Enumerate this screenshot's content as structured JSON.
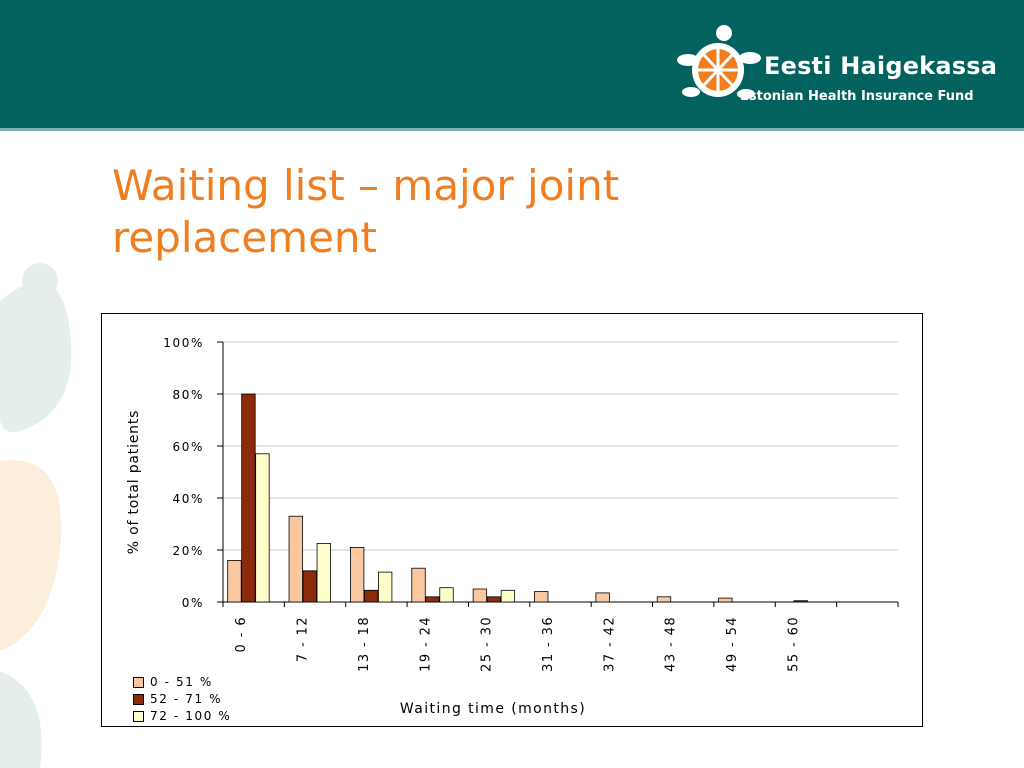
{
  "header": {
    "logo_name": "Eesti Haigekassa",
    "logo_subtitle": "Estonian Health Insurance Fund",
    "band_color": "#04625e"
  },
  "slide": {
    "title": "Waiting list – major joint replacement",
    "title_color": "#f07d1e"
  },
  "chart_data": {
    "type": "bar",
    "categories": [
      "0 - 6",
      "7 - 12",
      "13 - 18",
      "19 - 24",
      "25 - 30",
      "31 - 36",
      "37 - 42",
      "43 - 48",
      "49 - 54",
      "55 - 60",
      ""
    ],
    "series": [
      {
        "name": "0 - 51 %",
        "color": "#f9c8a0",
        "values": [
          16,
          33,
          21,
          13,
          5,
          4,
          3.5,
          2,
          1.5,
          0,
          0
        ]
      },
      {
        "name": "52 - 71 %",
        "color": "#8c2a0a",
        "values": [
          80,
          12,
          4.5,
          2,
          2,
          0,
          0,
          0,
          0,
          0.5,
          0
        ]
      },
      {
        "name": "72 - 100 %",
        "color": "#ffffcc",
        "values": [
          57,
          22.5,
          11.5,
          5.5,
          4.5,
          0,
          0,
          0,
          0,
          0,
          0
        ]
      }
    ],
    "xlabel": "Waiting time (months)",
    "ylabel": "% of total patients",
    "ylim": [
      0,
      100
    ],
    "yticks": [
      "0%",
      "20%",
      "40%",
      "60%",
      "80%",
      "100%"
    ],
    "grid": true,
    "legend_position": "bottom-left"
  }
}
